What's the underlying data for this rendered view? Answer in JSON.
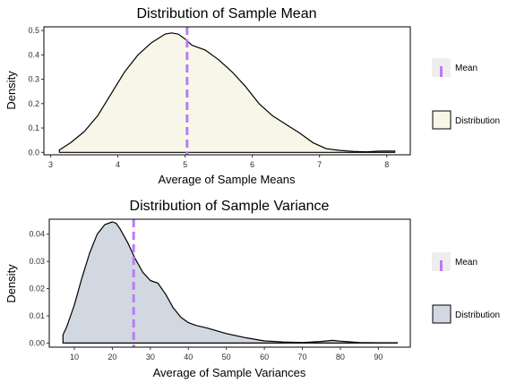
{
  "chart_data": [
    {
      "type": "area",
      "title": "Distribution of Sample Mean",
      "xlabel": "Average of Sample Means",
      "ylabel": "Density",
      "xlim": [
        2.9,
        8.35
      ],
      "ylim": [
        -0.01,
        0.515
      ],
      "x_ticks": [
        "3",
        "4",
        "5",
        "6",
        "7",
        "8"
      ],
      "y_ticks": [
        "0.0",
        "0.1",
        "0.2",
        "0.3",
        "0.4",
        "0.5"
      ],
      "grid": false,
      "fill_color": "#f8f6e9",
      "line_color": "#000000",
      "mean_line_color": "#b77cf9",
      "mean": 5.03,
      "series": [
        {
          "name": "Distribution",
          "x": [
            3.13,
            3.3,
            3.5,
            3.7,
            3.9,
            4.1,
            4.3,
            4.5,
            4.7,
            4.8,
            4.9,
            5.0,
            5.1,
            5.3,
            5.5,
            5.7,
            5.9,
            6.1,
            6.3,
            6.5,
            6.7,
            6.9,
            7.1,
            7.3,
            7.5,
            7.7,
            7.9,
            8.12
          ],
          "y": [
            0.01,
            0.04,
            0.085,
            0.15,
            0.24,
            0.33,
            0.4,
            0.45,
            0.485,
            0.49,
            0.485,
            0.465,
            0.44,
            0.42,
            0.38,
            0.33,
            0.27,
            0.2,
            0.15,
            0.115,
            0.08,
            0.04,
            0.015,
            0.008,
            0.004,
            0.002,
            0.005,
            0.005
          ]
        }
      ],
      "legend": {
        "position": "right",
        "items": [
          {
            "label": "Mean",
            "kind": "line"
          },
          {
            "label": "Distribution",
            "kind": "fill"
          }
        ]
      }
    },
    {
      "type": "area",
      "title": "Distribution of Sample Variance",
      "xlabel": "Average of Sample Variances",
      "ylabel": "Density",
      "xlim": [
        3.4,
        98.4
      ],
      "ylim": [
        -0.0015,
        0.0455
      ],
      "x_ticks": [
        "10",
        "20",
        "30",
        "40",
        "50",
        "60",
        "70",
        "80",
        "90"
      ],
      "y_ticks": [
        "0.00",
        "0.01",
        "0.02",
        "0.03",
        "0.04"
      ],
      "grid": false,
      "fill_color": "#d2d8e2",
      "line_color": "#000000",
      "mean_line_color": "#b77cf9",
      "mean": 25.6,
      "series": [
        {
          "name": "Distribution",
          "x": [
            7,
            8,
            10,
            12,
            14,
            16,
            18,
            20,
            21,
            22,
            24,
            26,
            28,
            30,
            32,
            34,
            36,
            38,
            40,
            42,
            45,
            50,
            55,
            60,
            65,
            70,
            75,
            78,
            80,
            85,
            90,
            95
          ],
          "y": [
            0.003,
            0.006,
            0.014,
            0.024,
            0.033,
            0.04,
            0.0435,
            0.0445,
            0.044,
            0.042,
            0.037,
            0.031,
            0.026,
            0.023,
            0.022,
            0.018,
            0.013,
            0.0095,
            0.0075,
            0.0065,
            0.0055,
            0.0035,
            0.002,
            0.0008,
            0.0004,
            0.0002,
            0.0006,
            0.001,
            0.0007,
            0.0002,
            0.0001,
            0.0001
          ]
        }
      ],
      "legend": {
        "position": "right",
        "items": [
          {
            "label": "Mean",
            "kind": "line"
          },
          {
            "label": "Distribution",
            "kind": "fill"
          }
        ]
      }
    }
  ]
}
